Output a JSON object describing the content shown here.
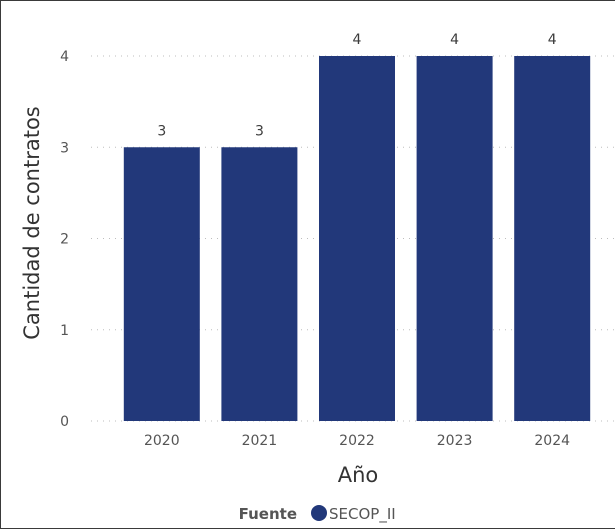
{
  "chart_data": {
    "type": "bar",
    "categories": [
      "2020",
      "2021",
      "2022",
      "2023",
      "2024"
    ],
    "series": [
      {
        "name": "SECOP_II",
        "values": [
          3,
          3,
          4,
          4,
          4
        ],
        "color": "#22387a"
      }
    ],
    "data_labels": [
      "3",
      "3",
      "4",
      "4",
      "4"
    ],
    "xlabel": "Año",
    "ylabel": "Cantidad de contratos",
    "ylim": [
      0,
      4
    ],
    "yticks": [
      "0",
      "1",
      "2",
      "3",
      "4"
    ],
    "grid": true,
    "legend": {
      "title": "Fuente",
      "position": "bottom",
      "entries": [
        "SECOP_II"
      ]
    }
  }
}
